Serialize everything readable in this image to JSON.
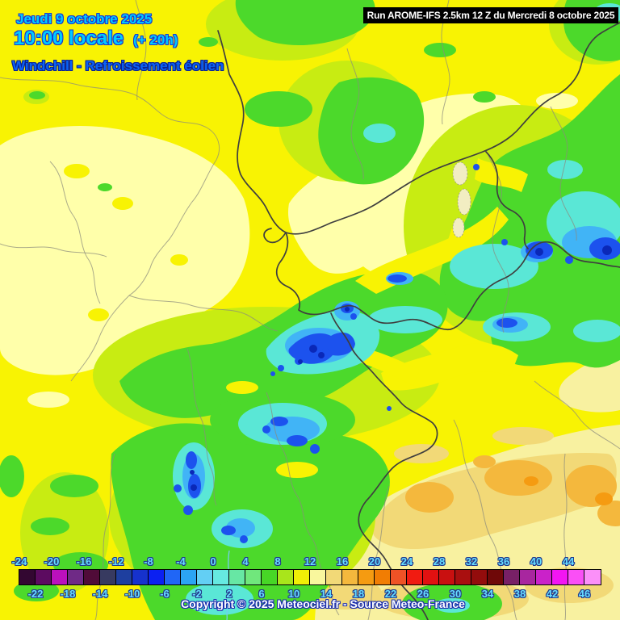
{
  "header": {
    "date_line": "Jeudi 9 octobre 2025",
    "time_line": "10:00 locale",
    "time_offset": "(+ 20h)",
    "variable_line": "Windchill - Refroissement éolien",
    "date_time_color": "#00ccff",
    "variable_color": "#0b63f6"
  },
  "run_banner": {
    "label": "Run AROME-IFS 2.5km 12 Z du Mercredi 8 octobre 2025",
    "background": "#000000",
    "text_color": "#ffffff"
  },
  "colorbar": {
    "top_labels": [
      "-24",
      "-20",
      "-16",
      "-12",
      "-8",
      "-4",
      "0",
      "4",
      "8",
      "12",
      "16",
      "20",
      "24",
      "28",
      "32",
      "36",
      "40",
      "44"
    ],
    "bottom_labels": [
      "-22",
      "-18",
      "-14",
      "-10",
      "-6",
      "-2",
      "2",
      "6",
      "10",
      "14",
      "18",
      "22",
      "26",
      "30",
      "34",
      "38",
      "42",
      "46"
    ],
    "cell_colors": [
      "#330731",
      "#5c0b60",
      "#bb10bd",
      "#6f2a86",
      "#500b38",
      "#373a60",
      "#1e3f9f",
      "#1632cd",
      "#0b20f2",
      "#2066f6",
      "#2ca4f3",
      "#63cff4",
      "#66e9e1",
      "#67e7a4",
      "#70e77c",
      "#47d626",
      "#a9e51b",
      "#f1ee06",
      "#f9f79d",
      "#f2d977",
      "#f4b83d",
      "#f59b11",
      "#f17d03",
      "#ef5226",
      "#f11b11",
      "#e11111",
      "#c91010",
      "#a90f0f",
      "#930c0c",
      "#6f0808",
      "#782066",
      "#a8269f",
      "#ca22c9",
      "#f315f3",
      "#fa4ff6",
      "#fb90f9"
    ],
    "label_color": "#66ddff",
    "unit_step": 2
  },
  "footer": {
    "copyright": "Copyright © 2025 Meteociel.fr - Source Meteo-France"
  },
  "map": {
    "palette": {
      "yellow": "#f8f303",
      "pale_yellow": "#ffffaa",
      "yellow_green": "#c8ec12",
      "green": "#4cd92b",
      "cyan": "#5ae7d6",
      "sky_blue": "#41b4f6",
      "blue": "#1c52ee",
      "dark_blue": "#0a28b8",
      "tan": "#f2d977",
      "gold": "#f4b83d",
      "orange": "#f59b11",
      "country_border": "#3f3f3f",
      "department_border": "#8a8a7d"
    }
  }
}
